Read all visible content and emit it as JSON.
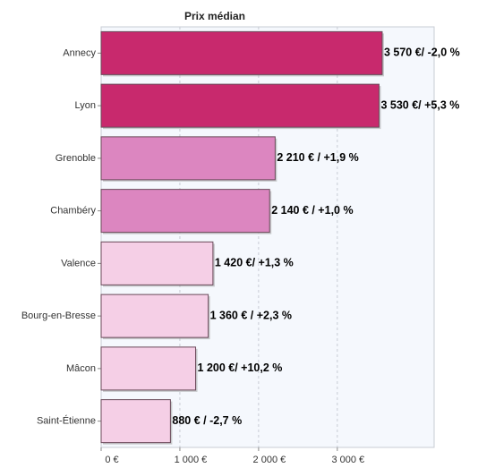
{
  "chart_data": {
    "type": "hbar",
    "title": "Prix médian",
    "categories": [
      "Annecy",
      "Lyon",
      "Grenoble",
      "Chambéry",
      "Valence",
      "Bourg-en-Bresse",
      "Mâcon",
      "Saint-Étienne"
    ],
    "values": [
      3570,
      3530,
      2210,
      2140,
      1420,
      1360,
      1200,
      880
    ],
    "value_labels": [
      "3 570 €/ -2,0 %",
      "3 530 €/ +5,3 %",
      "2 210 € / +1,9 %",
      "2 140 € / +1,0 %",
      "1 420 €/ +1,3 %",
      "1 360 € / +2,3 %",
      "1 200 €/ +10,2 %",
      "880 € / -2,7 %"
    ],
    "colors": [
      "#c8296d",
      "#c8296d",
      "#dc86c0",
      "#dc86c0",
      "#f5cfe6",
      "#f5cfe6",
      "#f5cfe6",
      "#f5cfe6"
    ],
    "xlim": [
      0,
      4230
    ],
    "xticks": [
      {
        "value": 0,
        "label": "0 €"
      },
      {
        "value": 1000,
        "label": "1 000 €"
      },
      {
        "value": 2000,
        "label": "2 000 €"
      },
      {
        "value": 3000,
        "label": "3 000 €"
      }
    ],
    "grid": true
  }
}
